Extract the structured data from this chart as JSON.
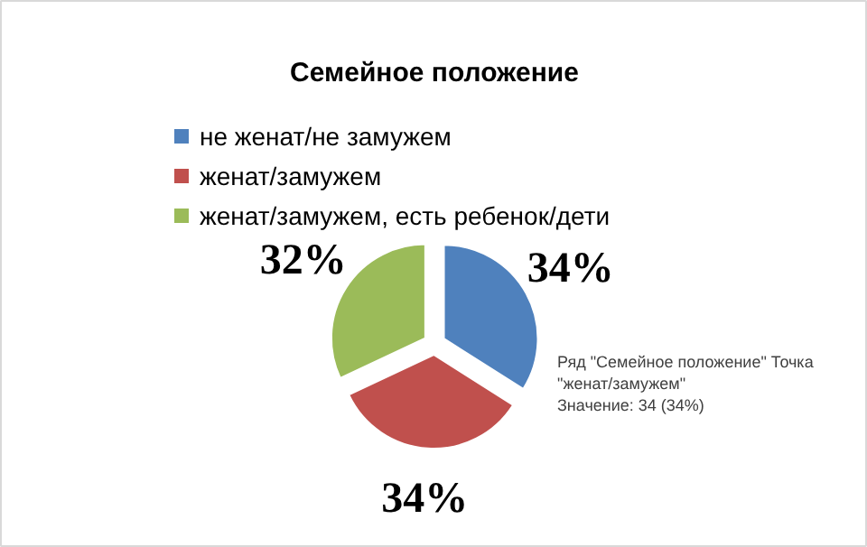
{
  "chart_data": {
    "type": "pie",
    "title": "Семейное положение",
    "categories": [
      "не женат/не замужем",
      "женат/замужем",
      "женат/замужем, есть ребенок/дети"
    ],
    "values": [
      34,
      34,
      32
    ],
    "value_labels": [
      "34%",
      "34%",
      "32%"
    ],
    "colors": [
      "#4f81bd",
      "#c0504d",
      "#9bbb59"
    ],
    "legend": "top",
    "annotations": [
      "Ряд \"Семейное положение\" Точка \"женат/замужем\"",
      "Значение: 34 (34%)"
    ]
  }
}
